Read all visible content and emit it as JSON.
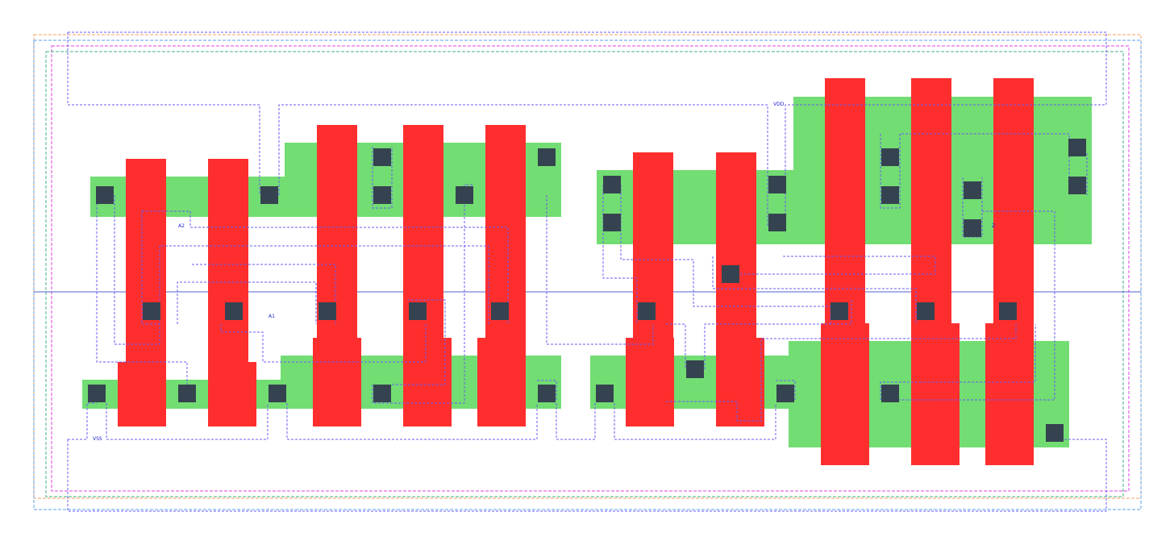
{
  "labels": {
    "vdd": "VDD",
    "vss": "VSS",
    "a1": "A1",
    "a2": "A2",
    "z": "Z"
  },
  "colors": {
    "diffusion": "#72dd72",
    "polysilicon": "#ff2e2e",
    "contact": "#354350",
    "routing": "#6a5cf5",
    "boundary_orange": "#f5a060",
    "boundary_blue": "#5aa0f0",
    "boundary_magenta": "#e040e0",
    "boundary_green": "#40b080",
    "centerline": "#5060d0"
  }
}
